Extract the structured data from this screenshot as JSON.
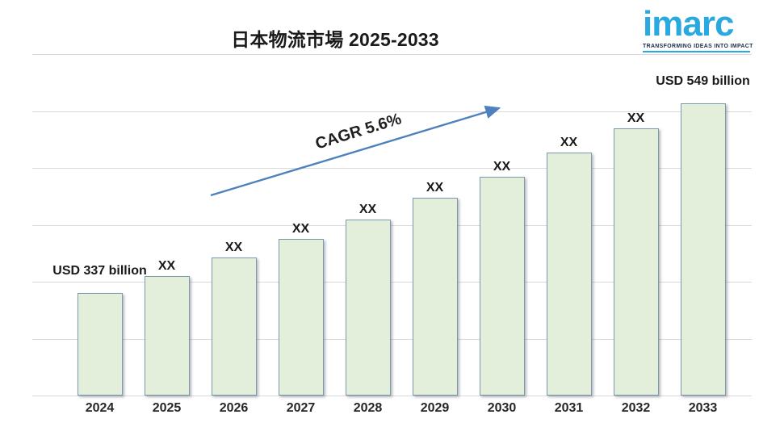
{
  "header": {
    "title_main": "日本物流市場",
    "title_range": "2025-2033"
  },
  "logo": {
    "brand": "imarc",
    "tagline": "TRANSFORMING IDEAS INTO IMPACT",
    "brand_color": "#29a9e0",
    "tagline_color": "#1b2b4a"
  },
  "chart_data": {
    "type": "bar",
    "title": "日本物流市場 2025-2033",
    "categories": [
      "2024",
      "2025",
      "2026",
      "2027",
      "2028",
      "2029",
      "2030",
      "2031",
      "2032",
      "2033"
    ],
    "values": [
      337,
      356,
      376,
      397,
      419,
      443,
      467,
      494,
      521,
      549
    ],
    "values_note": "Only 2024 (USD 337 billion) and 2033 (USD 549 billion) are labeled; intermediate bars are masked as XX and estimated here from the stated CAGR of 5.6%",
    "value_labels": [
      "USD 337 billion",
      "XX",
      "XX",
      "XX",
      "XX",
      "XX",
      "XX",
      "XX",
      "XX",
      "USD 549 billion"
    ],
    "unit": "USD billion",
    "annotation": "CAGR 5.6%",
    "xlabel": "",
    "ylabel": "",
    "ylim": [
      222,
      560
    ],
    "grid": true,
    "gridline_count": 7,
    "legend": false,
    "colors": {
      "bar_fill": "#e3efdb",
      "bar_border": "#7c99ad",
      "gridline": "#d9d9d9",
      "arrow": "#4f81bd",
      "label": "#1a1a1a"
    }
  }
}
